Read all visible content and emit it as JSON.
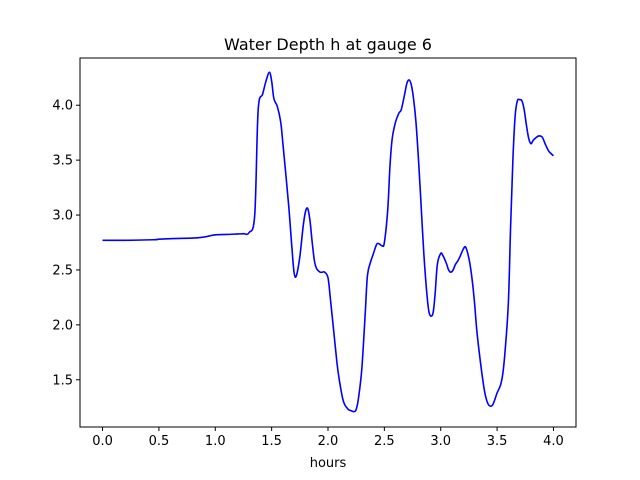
{
  "chart_data": {
    "type": "line",
    "title": "Water Depth h at gauge 6",
    "xlabel": "hours",
    "ylabel": "",
    "xlim": [
      -0.2,
      4.2
    ],
    "ylim": [
      1.07,
      4.43
    ],
    "xticks": [
      0.0,
      0.5,
      1.0,
      1.5,
      2.0,
      2.5,
      3.0,
      3.5,
      4.0
    ],
    "xtick_labels": [
      "0.0",
      "0.5",
      "1.0",
      "1.5",
      "2.0",
      "2.5",
      "3.0",
      "3.5",
      "4.0"
    ],
    "yticks": [
      1.5,
      2.0,
      2.5,
      3.0,
      3.5,
      4.0
    ],
    "ytick_labels": [
      "1.5",
      "2.0",
      "2.5",
      "3.0",
      "3.5",
      "4.0"
    ],
    "grid": false,
    "series": [
      {
        "color": "#0000ff",
        "x": [
          0.0,
          0.2,
          0.45,
          0.5,
          0.6,
          0.8,
          0.9,
          0.95,
          1.0,
          1.1,
          1.2,
          1.25,
          1.3,
          1.35,
          1.38,
          1.42,
          1.45,
          1.48,
          1.5,
          1.52,
          1.55,
          1.58,
          1.6,
          1.65,
          1.68,
          1.7,
          1.72,
          1.75,
          1.78,
          1.8,
          1.82,
          1.84,
          1.86,
          1.88,
          1.9,
          1.93,
          1.95,
          1.97,
          2.0,
          2.02,
          2.05,
          2.08,
          2.1,
          2.13,
          2.15,
          2.18,
          2.2,
          2.23,
          2.25,
          2.27,
          2.3,
          2.33,
          2.35,
          2.38,
          2.4,
          2.43,
          2.45,
          2.48,
          2.5,
          2.53,
          2.55,
          2.57,
          2.6,
          2.63,
          2.65,
          2.68,
          2.7,
          2.72,
          2.74,
          2.76,
          2.78,
          2.8,
          2.82,
          2.85,
          2.88,
          2.9,
          2.93,
          2.95,
          2.97,
          3.0,
          3.02,
          3.05,
          3.07,
          3.09,
          3.11,
          3.13,
          3.15,
          3.17,
          3.2,
          3.22,
          3.24,
          3.26,
          3.28,
          3.3,
          3.32,
          3.35,
          3.38,
          3.4,
          3.42,
          3.44,
          3.46,
          3.48,
          3.5,
          3.53,
          3.55,
          3.57,
          3.6,
          3.62,
          3.64,
          3.66,
          3.68,
          3.7,
          3.72,
          3.74,
          3.76,
          3.78,
          3.8,
          3.82,
          3.84,
          3.87,
          3.9,
          3.93,
          3.96,
          4.0
        ],
        "y": [
          2.77,
          2.77,
          2.775,
          2.78,
          2.785,
          2.79,
          2.8,
          2.81,
          2.82,
          2.823,
          2.828,
          2.83,
          2.84,
          3.0,
          3.95,
          4.1,
          4.22,
          4.3,
          4.22,
          4.06,
          3.99,
          3.85,
          3.65,
          3.1,
          2.7,
          2.47,
          2.45,
          2.62,
          2.9,
          3.03,
          3.06,
          2.95,
          2.75,
          2.58,
          2.51,
          2.48,
          2.48,
          2.48,
          2.43,
          2.25,
          1.95,
          1.65,
          1.5,
          1.33,
          1.27,
          1.23,
          1.22,
          1.21,
          1.23,
          1.33,
          1.6,
          2.1,
          2.45,
          2.58,
          2.64,
          2.73,
          2.74,
          2.72,
          2.75,
          3.05,
          3.45,
          3.7,
          3.85,
          3.93,
          3.96,
          4.1,
          4.2,
          4.23,
          4.18,
          4.05,
          3.85,
          3.55,
          3.2,
          2.65,
          2.25,
          2.1,
          2.1,
          2.28,
          2.55,
          2.65,
          2.63,
          2.56,
          2.5,
          2.48,
          2.5,
          2.55,
          2.58,
          2.62,
          2.69,
          2.71,
          2.65,
          2.55,
          2.4,
          2.2,
          1.95,
          1.68,
          1.45,
          1.34,
          1.28,
          1.26,
          1.27,
          1.32,
          1.38,
          1.45,
          1.55,
          1.75,
          2.2,
          2.9,
          3.5,
          3.9,
          4.04,
          4.05,
          4.04,
          3.96,
          3.82,
          3.7,
          3.65,
          3.68,
          3.7,
          3.72,
          3.71,
          3.64,
          3.58,
          3.54
        ]
      }
    ]
  }
}
